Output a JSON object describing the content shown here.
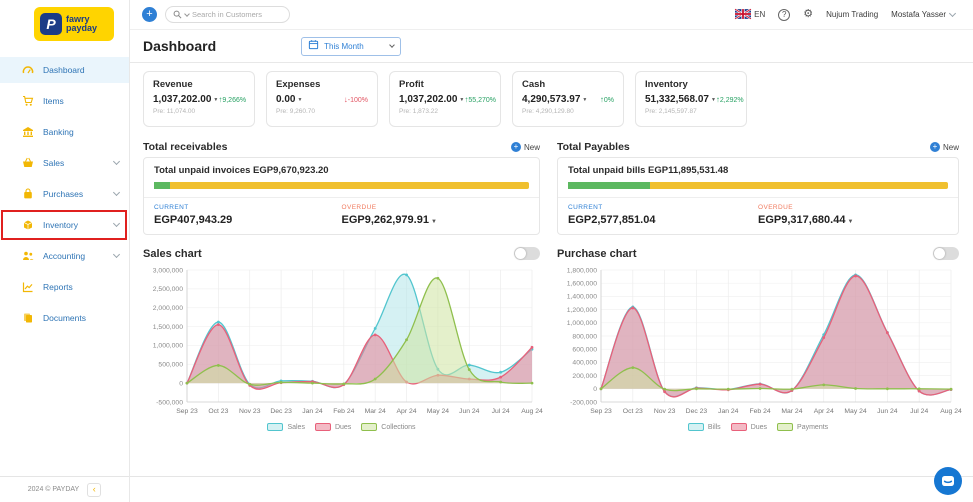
{
  "app": {
    "logo_line1": "fawry",
    "logo_line2": "payday"
  },
  "topbar": {
    "search_placeholder": "Search in Customers",
    "language": "EN",
    "company": "Nujum Trading",
    "user": "Mostafa Yasser"
  },
  "sidebar": {
    "items": [
      {
        "label": "Dashboard",
        "icon": "gauge-icon",
        "active": true
      },
      {
        "label": "Items",
        "icon": "cart-icon"
      },
      {
        "label": "Banking",
        "icon": "bank-icon"
      },
      {
        "label": "Sales",
        "icon": "basket-icon",
        "expandable": true
      },
      {
        "label": "Purchases",
        "icon": "bag-icon",
        "expandable": true
      },
      {
        "label": "Inventory",
        "icon": "box-icon",
        "expandable": true,
        "highlighted": true
      },
      {
        "label": "Accounting",
        "icon": "people-icon",
        "expandable": true
      },
      {
        "label": "Reports",
        "icon": "report-icon"
      },
      {
        "label": "Documents",
        "icon": "docs-icon"
      }
    ],
    "footer": "2024 © PAYDAY"
  },
  "header": {
    "title": "Dashboard",
    "period": "This Month"
  },
  "kpis": [
    {
      "title": "Revenue",
      "value": "1,037,202.00",
      "delta": "9,266%",
      "direction": "up",
      "previous": "Pre: 11,074.00"
    },
    {
      "title": "Expenses",
      "value": "0.00",
      "delta": "-100%",
      "direction": "down",
      "previous": "Pre: 9,260.70"
    },
    {
      "title": "Profit",
      "value": "1,037,202.00",
      "delta": "55,270%",
      "direction": "up",
      "previous": "Pre: 1,873.22"
    },
    {
      "title": "Cash",
      "value": "4,290,573.97",
      "delta": "0%",
      "direction": "up",
      "previous": "Pre: 4,290,129.80"
    },
    {
      "title": "Inventory",
      "value": "51,332,568.07",
      "delta": "2,292%",
      "direction": "up",
      "previous": "Pre: 2,145,597.87"
    }
  ],
  "receivables": {
    "title": "Total receivables",
    "new_label": "New",
    "summary": "Total unpaid invoices EGP9,670,923.20",
    "progress_pct": 4.2,
    "current_label": "CURRENT",
    "current_value": "EGP407,943.29",
    "overdue_label": "OVERDUE",
    "overdue_value": "EGP9,262,979.91"
  },
  "payables": {
    "title": "Total Payables",
    "new_label": "New",
    "summary": "Total unpaid bills EGP11,895,531.48",
    "progress_pct": 21.7,
    "current_label": "CURRENT",
    "current_value": "EGP2,577,851.04",
    "overdue_label": "OVERDUE",
    "overdue_value": "EGP9,317,680.44"
  },
  "chart_data": [
    {
      "type": "area",
      "title": "Sales chart",
      "x": [
        "Sep 23",
        "Oct 23",
        "Nov 23",
        "Dec 23",
        "Jan 24",
        "Feb 24",
        "Mar 24",
        "Apr 24",
        "May 24",
        "Jun 24",
        "Jul 24",
        "Aug 24"
      ],
      "series": [
        {
          "name": "Sales",
          "color": "#52C5CE",
          "fill": "rgba(178,229,233,0.55)",
          "values": [
            0,
            1620000,
            -30000,
            60000,
            50000,
            -30000,
            1450000,
            2870000,
            370000,
            480000,
            290000,
            900000
          ]
        },
        {
          "name": "Dues",
          "color": "#E8607A",
          "fill": "rgba(233,130,150,0.55)",
          "values": [
            0,
            1550000,
            -60000,
            10000,
            40000,
            -40000,
            1280000,
            30000,
            210000,
            110000,
            160000,
            950000
          ]
        },
        {
          "name": "Collections",
          "color": "#8FBF4D",
          "fill": "rgba(205,227,160,0.55)",
          "values": [
            0,
            470000,
            -30000,
            20000,
            0,
            -20000,
            110000,
            1150000,
            2780000,
            360000,
            30000,
            0
          ]
        }
      ],
      "ylim": [
        -500000,
        3000000
      ],
      "ytick_step": 500000,
      "grid": true,
      "legend_position": "bottom"
    },
    {
      "type": "area",
      "title": "Purchase chart",
      "x": [
        "Sep 23",
        "Oct 23",
        "Nov 23",
        "Dec 23",
        "Jan 24",
        "Feb 24",
        "Mar 24",
        "Apr 24",
        "May 24",
        "Jun 24",
        "Jul 24",
        "Aug 24"
      ],
      "series": [
        {
          "name": "Bills",
          "color": "#52C5CE",
          "fill": "rgba(178,229,233,0.55)",
          "values": [
            0,
            1240000,
            -40000,
            15000,
            -10000,
            75000,
            -25000,
            820000,
            1725000,
            855000,
            -35000,
            -10000
          ]
        },
        {
          "name": "Dues",
          "color": "#E8607A",
          "fill": "rgba(233,130,150,0.55)",
          "values": [
            0,
            1225000,
            -45000,
            10000,
            -15000,
            70000,
            -25000,
            775000,
            1710000,
            850000,
            -35000,
            -10000
          ]
        },
        {
          "name": "Payments",
          "color": "#8FBF4D",
          "fill": "rgba(205,227,160,0.55)",
          "values": [
            0,
            320000,
            -5000,
            0,
            -5000,
            5000,
            -5000,
            60000,
            5000,
            0,
            0,
            -5000
          ]
        }
      ],
      "ylim": [
        -200000,
        1800000
      ],
      "ytick_step": 200000,
      "grid": true,
      "legend_position": "bottom"
    }
  ],
  "theme": {
    "accent_blue": "#2F80D5",
    "brand_yellow": "#FFD400",
    "icon_yellow": "#F2B705",
    "green": "#27A163",
    "red": "#E25563",
    "progress_green": "#5CB860",
    "progress_yellow": "#F0C02F",
    "highlight_red": "#E0201F",
    "chat_blue": "#1677D2"
  }
}
